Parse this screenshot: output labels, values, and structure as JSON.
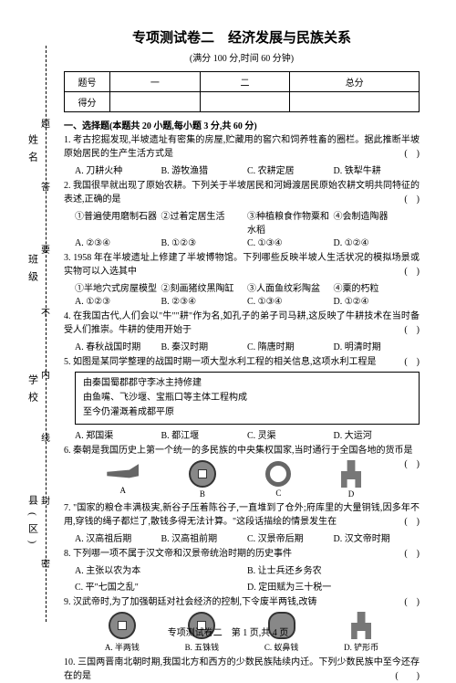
{
  "title": "专项测试卷二　经济发展与民族关系",
  "subtitle": "(满分 100 分,时间 60 分钟)",
  "side": {
    "l1": "姓名",
    "l2": "班级",
    "l3": "学校",
    "l4": "县(区)"
  },
  "marks": {
    "m1": "题",
    "m2": "答",
    "m3": "要",
    "m4": "不",
    "m5": "内",
    "m6": "线",
    "m7": "封",
    "m8": "密"
  },
  "scoreTable": {
    "h1": "题号",
    "h2": "一",
    "h3": "二",
    "h4": "总分",
    "r2": "得分"
  },
  "section1": "一、选择题(本题共 20 小题,每小题 3 分,共 60 分)",
  "q1": {
    "t": "1. 考古挖掘发现,半坡遗址有密集的房屋,贮藏用的窖穴和饲养牲畜的圈栏。据此推断半坡原始居民的生产生活方式是",
    "a": "A. 刀耕火种",
    "b": "B. 游牧渔猎",
    "c": "C. 农耕定居",
    "d": "D. 铁犁牛耕",
    "p": "(　)"
  },
  "q2": {
    "t": "2. 我国很早就出现了原始农耕。下列关于半坡居民和河姆渡居民原始农耕文明共同特征的表述,正确的是",
    "o1": "①普遍使用磨制石器",
    "o2": "②过着定居生活",
    "o3": "③种植粮食作物粟和水稻",
    "o4": "④会制造陶器",
    "a": "A. ②③④",
    "b": "B. ①②③",
    "c": "C. ①③④",
    "d": "D. ①②④",
    "p": "(　)"
  },
  "q3": {
    "t": "3. 1958 年在半坡遗址上修建了半坡博物馆。下列哪些反映半坡人生活状况的模拟场景或实物可以入选其中",
    "o1": "①半地穴式房屋模型",
    "o2": "②刻画猪纹黑陶缸",
    "o3": "③人面鱼纹彩陶盆",
    "o4": "④粟的朽粒",
    "a": "A. ①②③",
    "b": "B. ②③④",
    "c": "C. ①③④",
    "d": "D. ①②④",
    "p": "(　)"
  },
  "q4": {
    "t": "4. 在我国古代,人们会以\"牛\"\"耕\"作为名,如孔子的弟子司马耕,这反映了牛耕技术在当时备受人们推崇。牛耕的使用开始于",
    "a": "A. 春秋战国时期",
    "b": "B. 秦汉时期",
    "c": "C. 隋唐时期",
    "d": "D. 明清时期",
    "p": "(　)"
  },
  "q5": {
    "t": "5. 如图是某同学整理的战国时期一项大型水利工程的相关信息,这项水利工程是",
    "box1": "由秦国蜀郡郡守李冰主持修建",
    "box2": "由鱼嘴、飞沙堰、宝瓶口等主体工程构成",
    "box3": "至今仍灌溉着成都平原",
    "a": "A. 郑国渠",
    "b": "B. 都江堰",
    "c": "C. 灵渠",
    "d": "D. 大运河",
    "p": "(　)"
  },
  "q6": {
    "t": "6. 秦朝是我国历史上第一个统一的多民族的中央集权国家,当时通行于全国各地的货币是",
    "a": "A",
    "b": "B",
    "c": "C",
    "d": "D",
    "p": "(　)"
  },
  "q7": {
    "t": "7. \"国家的粮仓丰满极実,新谷子压着陈谷子,一直堆到了仓外;府库里的大量铜钱,因多年不用,穿钱的绳子都烂了,散钱多得无法计算。\"这段话描绘的情景发生在",
    "a": "A. 汉高祖后期",
    "b": "B. 汉高祖前期",
    "c": "C. 汉景帝后期",
    "d": "D. 汉文帝时期",
    "p": "(　)"
  },
  "q8": {
    "t": "8. 下列哪一项不属于汉文帝和汉景帝统治时期的历史事件",
    "a": "A. 主张以农为本",
    "b": "B. 让士兵还乡务农",
    "c": "C. 平\"七国之乱\"",
    "d": "D. 定田赋为三十税一",
    "p": "(　)"
  },
  "q9": {
    "t": "9. 汉武帝时,为了加强朝廷对社会经济的控制,下令废半两钱,改铸",
    "a": "A. 半两钱",
    "b": "B. 五铢钱",
    "c": "C. 蚁鼻钱",
    "d": "D. 铲形币",
    "p": "(　)"
  },
  "q10": {
    "t": "10. 三国两晋南北朝时期,我国北方和西方的少数民族陆续内迁。下列少数民族中至今还存在的是",
    "p": "(　　)"
  },
  "footer": "专项测试卷二　第 1 页,共 4 页"
}
